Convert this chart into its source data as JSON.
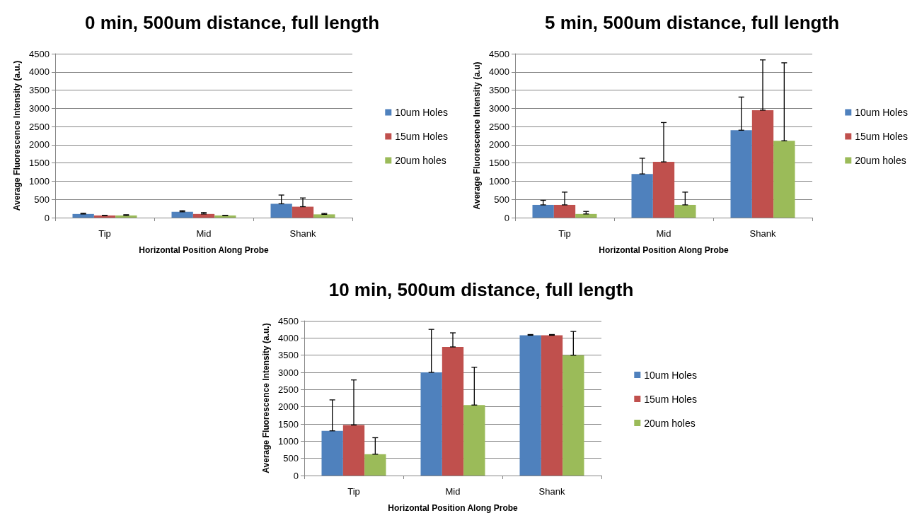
{
  "chart_data": [
    {
      "type": "bar",
      "title": "0 min, 500um distance, full length",
      "xlabel": "Horizontal Position Along Probe",
      "ylabel": "Average Fluorescence Intensity (a.u.)",
      "categories": [
        "Tip",
        "Mid",
        "Shank"
      ],
      "ylim": [
        0,
        4500
      ],
      "yticks": [
        0,
        500,
        1000,
        1500,
        2000,
        2500,
        3000,
        3500,
        4000,
        4500
      ],
      "grid": "y",
      "legend": "right",
      "series": [
        {
          "name": "10um Holes",
          "color": "#4f81bd",
          "values": [
            100,
            160,
            380
          ],
          "errors": [
            [
              100,
              120
            ],
            [
              160,
              190
            ],
            [
              380,
              620
            ]
          ]
        },
        {
          "name": "15um Holes",
          "color": "#c0504d",
          "values": [
            60,
            100,
            300
          ],
          "errors": [
            [
              60,
              60
            ],
            [
              100,
              140
            ],
            [
              300,
              540
            ]
          ]
        },
        {
          "name": "20um holes",
          "color": "#9bbb59",
          "values": [
            60,
            60,
            90
          ],
          "errors": [
            [
              60,
              80
            ],
            [
              60,
              60
            ],
            [
              90,
              115
            ]
          ]
        }
      ]
    },
    {
      "type": "bar",
      "title": "5 min, 500um distance, full length",
      "xlabel": "Horizontal Position Along Probe",
      "ylabel": "Average Fluorescence Intensity (a.u)",
      "categories": [
        "Tip",
        "Mid",
        "Shank"
      ],
      "ylim": [
        0,
        4500
      ],
      "yticks": [
        0,
        500,
        1000,
        1500,
        2000,
        2500,
        3000,
        3500,
        4000,
        4500
      ],
      "grid": "y",
      "legend": "right",
      "series": [
        {
          "name": "10um Holes",
          "color": "#4f81bd",
          "values": [
            350,
            1200,
            2400
          ],
          "errors": [
            [
              350,
              475
            ],
            [
              1200,
              1630
            ],
            [
              2400,
              3310
            ]
          ]
        },
        {
          "name": "15um Holes",
          "color": "#c0504d",
          "values": [
            350,
            1530,
            2950
          ],
          "errors": [
            [
              350,
              700
            ],
            [
              1530,
              2610
            ],
            [
              2950,
              4330
            ]
          ]
        },
        {
          "name": "20um holes",
          "color": "#9bbb59",
          "values": [
            100,
            350,
            2110
          ],
          "errors": [
            [
              100,
              170
            ],
            [
              350,
              700
            ],
            [
              2110,
              4250
            ]
          ]
        }
      ]
    },
    {
      "type": "bar",
      "title": "10 min, 500um distance, full length",
      "xlabel": "Horizontal Position Along Probe",
      "ylabel": "Average Fluorescence Intensity (a.u.)",
      "categories": [
        "Tip",
        "Mid",
        "Shank"
      ],
      "ylim": [
        0,
        4500
      ],
      "yticks": [
        0,
        500,
        1000,
        1500,
        2000,
        2500,
        3000,
        3500,
        4000,
        4500
      ],
      "grid": "y",
      "legend": "right",
      "series": [
        {
          "name": "10um Holes",
          "color": "#4f81bd",
          "values": [
            1300,
            3000,
            4080
          ],
          "errors": [
            [
              1300,
              2200
            ],
            [
              3000,
              4250
            ],
            [
              4080,
              4100
            ]
          ]
        },
        {
          "name": "15um Holes",
          "color": "#c0504d",
          "values": [
            1470,
            3740,
            4080
          ],
          "errors": [
            [
              1470,
              2780
            ],
            [
              3740,
              4150
            ],
            [
              4080,
              4100
            ]
          ]
        },
        {
          "name": "20um holes",
          "color": "#9bbb59",
          "values": [
            620,
            2050,
            3500
          ],
          "errors": [
            [
              620,
              1100
            ],
            [
              2050,
              3150
            ],
            [
              3500,
              4190
            ]
          ]
        }
      ]
    }
  ]
}
